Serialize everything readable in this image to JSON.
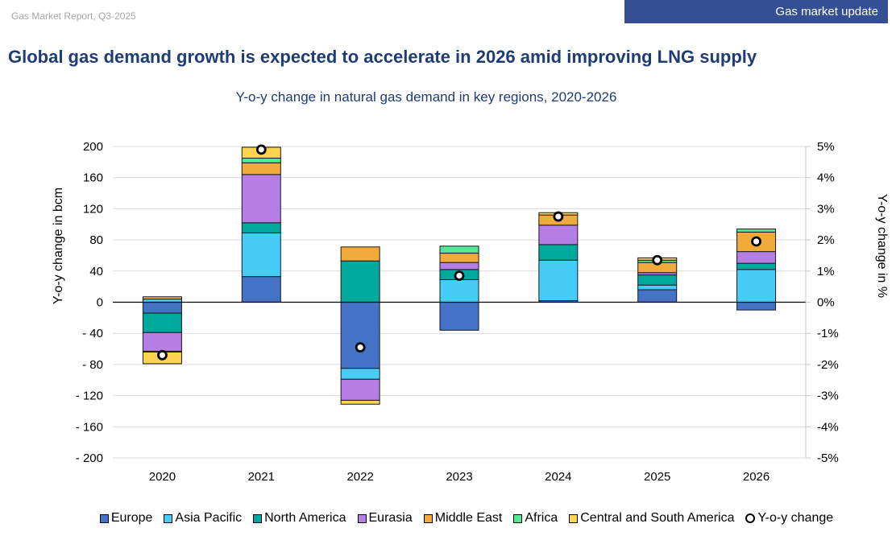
{
  "header": {
    "report_label": "Gas Market Report, Q3-2025",
    "section_banner": "Gas market update",
    "headline": "Global gas demand growth is expected to accelerate in 2026 amid improving LNG supply"
  },
  "chart_data": {
    "type": "bar",
    "stacked": true,
    "title": "Y-o-y change in natural gas demand in key regions, 2020-2026",
    "xlabel": "",
    "ylabel": "Y-o-y change in bcm",
    "y2label": "Y-o-y change in %",
    "ylim": [
      -200,
      200
    ],
    "y2lim": [
      -5,
      5
    ],
    "yticks": [
      200,
      160,
      120,
      80,
      40,
      0,
      -40,
      -80,
      -120,
      -160,
      -200
    ],
    "ytick_labels": [
      "200",
      "160",
      "120",
      "80",
      "40",
      "0",
      "- 40",
      "- 80",
      "- 120",
      "- 160",
      "- 200"
    ],
    "y2tick_labels": [
      "5%",
      "4%",
      "3%",
      "2%",
      "1%",
      "0%",
      "-1%",
      "-2%",
      "-3%",
      "-4%",
      "-5%"
    ],
    "grid": true,
    "legend_position": "bottom",
    "categories": [
      "2020",
      "2021",
      "2022",
      "2023",
      "2024",
      "2025",
      "2026"
    ],
    "series": [
      {
        "name": "Europe",
        "color": "#4472c4",
        "values": [
          -14,
          33,
          -85,
          -36,
          2,
          16,
          -10
        ]
      },
      {
        "name": "Asia Pacific",
        "color": "#45cdf8",
        "values": [
          4,
          56,
          -14,
          29,
          52,
          6,
          42
        ]
      },
      {
        "name": "North America",
        "color": "#00a99d",
        "values": [
          -25,
          13,
          53,
          13,
          20,
          13,
          8
        ]
      },
      {
        "name": "Eurasia",
        "color": "#b57ee5",
        "values": [
          -24,
          62,
          -27,
          9,
          25,
          3,
          15
        ]
      },
      {
        "name": "Middle East",
        "color": "#f0ab3a",
        "values": [
          3,
          15,
          18,
          12,
          13,
          13,
          25
        ]
      },
      {
        "name": "Africa",
        "color": "#52e895",
        "values": [
          -1,
          6,
          0,
          9,
          0,
          3,
          4
        ]
      },
      {
        "name": "Central and South America",
        "color": "#fed44e",
        "values": [
          -15,
          14,
          -5,
          0,
          3,
          3,
          0
        ]
      }
    ],
    "line_series": {
      "name": "Y-o-y change",
      "axis": "secondary",
      "unit": "%",
      "values": [
        -1.7,
        4.9,
        -1.45,
        0.85,
        2.75,
        1.35,
        1.95
      ]
    }
  }
}
